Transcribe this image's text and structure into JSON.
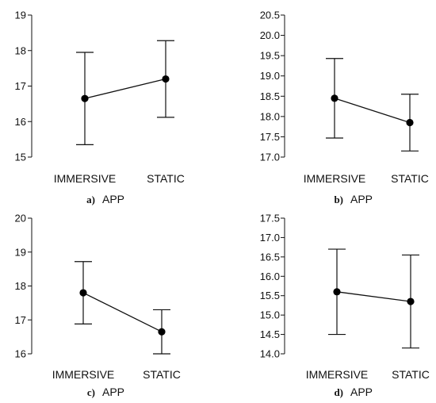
{
  "chart_data": [
    {
      "type": "line",
      "panel": "a)",
      "xlabel": "APP",
      "categories": [
        "IMMERSIVE",
        "STATIC"
      ],
      "values": [
        16.65,
        17.2
      ],
      "error_low": [
        15.35,
        16.12
      ],
      "error_high": [
        17.95,
        18.28
      ],
      "ylim": [
        15,
        19
      ],
      "yticks": [
        "15",
        "16",
        "17",
        "18",
        "19"
      ],
      "grid": false
    },
    {
      "type": "line",
      "panel": "b)",
      "xlabel": "APP",
      "categories": [
        "IMMERSIVE",
        "STATIC"
      ],
      "values": [
        18.45,
        17.85
      ],
      "error_low": [
        17.47,
        17.15
      ],
      "error_high": [
        19.43,
        18.55
      ],
      "ylim": [
        17.0,
        20.5
      ],
      "yticks": [
        "17.0",
        "17.5",
        "18.0",
        "18.5",
        "19.0",
        "19.5",
        "20.0",
        "20.5"
      ],
      "grid": false
    },
    {
      "type": "line",
      "panel": "c)",
      "xlabel": "APP",
      "categories": [
        "IMMERSIVE",
        "STATIC"
      ],
      "values": [
        17.8,
        16.65
      ],
      "error_low": [
        16.88,
        16.0
      ],
      "error_high": [
        18.72,
        17.3
      ],
      "ylim": [
        16,
        20
      ],
      "yticks": [
        "16",
        "17",
        "18",
        "19",
        "20"
      ],
      "grid": false
    },
    {
      "type": "line",
      "panel": "d)",
      "xlabel": "APP",
      "categories": [
        "IMMERSIVE",
        "STATIC"
      ],
      "values": [
        15.6,
        15.35
      ],
      "error_low": [
        14.5,
        14.15
      ],
      "error_high": [
        16.7,
        16.55
      ],
      "ylim": [
        14.0,
        17.5
      ],
      "yticks": [
        "14.0",
        "14.5",
        "15.0",
        "15.5",
        "16.0",
        "16.5",
        "17.0",
        "17.5"
      ],
      "grid": false
    }
  ]
}
